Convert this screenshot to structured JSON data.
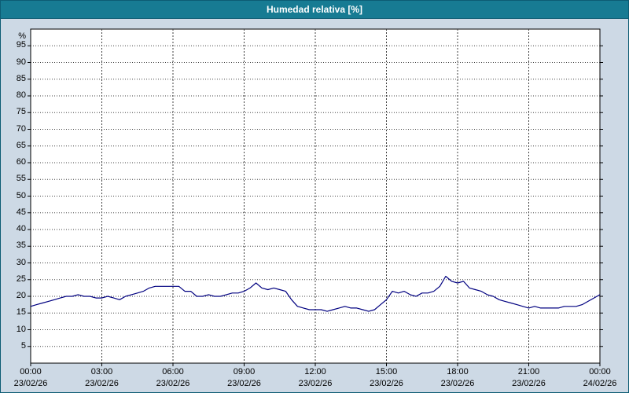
{
  "title": "Humedad relativa [%]",
  "colors": {
    "titlebar": "#177b93",
    "titlebar_text": "#ffffff",
    "window_bg": "#cdd9e5",
    "plot_bg": "#ffffff",
    "grid": "#404040",
    "axis": "#000000",
    "line": "#000080"
  },
  "chart_data": {
    "type": "line",
    "title": "Humedad relativa [%]",
    "ylabel": "%",
    "xlabel": "",
    "ylim": [
      0,
      100
    ],
    "yticks": [
      5,
      10,
      15,
      20,
      25,
      30,
      35,
      40,
      45,
      50,
      55,
      60,
      65,
      70,
      75,
      80,
      85,
      90,
      95
    ],
    "grid": true,
    "legend": false,
    "xticks": [
      {
        "hours": 0,
        "time": "00:00",
        "date": "23/02/26"
      },
      {
        "hours": 3,
        "time": "03:00",
        "date": "23/02/26"
      },
      {
        "hours": 6,
        "time": "06:00",
        "date": "23/02/26"
      },
      {
        "hours": 9,
        "time": "09:00",
        "date": "23/02/26"
      },
      {
        "hours": 12,
        "time": "12:00",
        "date": "23/02/26"
      },
      {
        "hours": 15,
        "time": "15:00",
        "date": "23/02/26"
      },
      {
        "hours": 18,
        "time": "18:00",
        "date": "23/02/26"
      },
      {
        "hours": 21,
        "time": "21:00",
        "date": "23/02/26"
      },
      {
        "hours": 24,
        "time": "00:00",
        "date": "24/02/26"
      }
    ],
    "x_unit": "hours",
    "x_hours_start": 0,
    "x_hours_step": 0.25,
    "values": [
      17,
      17.5,
      18,
      18.5,
      19,
      19.5,
      20,
      20,
      20.5,
      20,
      20,
      19.5,
      19.5,
      20,
      19.5,
      19,
      20,
      20.5,
      21,
      21.5,
      22.5,
      23,
      23,
      23,
      23,
      23,
      21.5,
      21.5,
      20,
      20,
      20.5,
      20,
      20,
      20.5,
      21,
      21,
      21.5,
      22.5,
      24,
      22.5,
      22,
      22.5,
      22,
      21.5,
      19,
      17,
      16.5,
      16,
      16,
      16,
      15.5,
      16,
      16.5,
      17,
      16.5,
      16.5,
      16,
      15.5,
      16,
      17.5,
      19,
      21.5,
      21,
      21.5,
      20.5,
      20,
      21,
      21,
      21.5,
      23,
      26,
      24.5,
      24,
      24.5,
      22.5,
      22,
      21.5,
      20.5,
      20,
      19,
      18.5,
      18,
      17.5,
      17,
      16.5,
      17,
      16.5,
      16.5,
      16.5,
      16.5,
      17,
      17,
      17,
      17.5,
      18.5,
      19.5,
      20.5
    ]
  }
}
